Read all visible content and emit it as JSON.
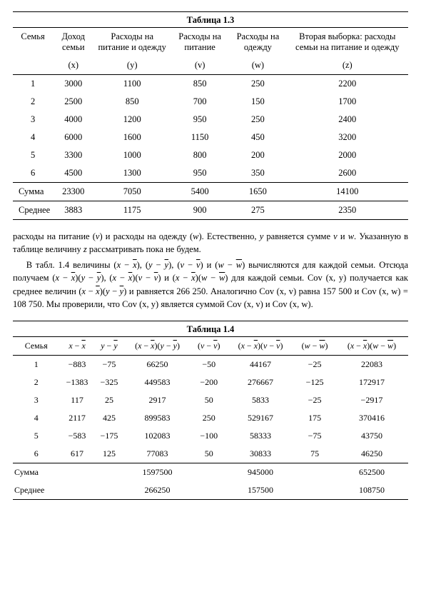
{
  "table13": {
    "title": "Таблица 1.3",
    "headers": [
      "Семья",
      "Доход семьи",
      "Расходы на питание и одежду",
      "Расходы на питание",
      "Расходы на одежду",
      "Вторая выборка: расходы семьи на питание и одежду"
    ],
    "subheaders": [
      "",
      "(x)",
      "(y)",
      "(v)",
      "(w)",
      "(z)"
    ],
    "rows": [
      [
        "1",
        "3000",
        "1100",
        "850",
        "250",
        "2200"
      ],
      [
        "2",
        "2500",
        "850",
        "700",
        "150",
        "1700"
      ],
      [
        "3",
        "4000",
        "1200",
        "950",
        "250",
        "2400"
      ],
      [
        "4",
        "6000",
        "1600",
        "1150",
        "450",
        "3200"
      ],
      [
        "5",
        "3300",
        "1000",
        "800",
        "200",
        "2000"
      ],
      [
        "6",
        "4500",
        "1300",
        "950",
        "350",
        "2600"
      ]
    ],
    "sum_label": "Сумма",
    "sum": [
      "23300",
      "7050",
      "5400",
      "1650",
      "14100"
    ],
    "mean_label": "Среднее",
    "mean": [
      "3883",
      "1175",
      "900",
      "275",
      "2350"
    ]
  },
  "body": {
    "p1a": "расходы на питание (",
    "p1b": ") и расходы на одежду (",
    "p1c": "). Естественно, ",
    "p1d": " равняется сумме ",
    "p1e": " и ",
    "p1f": ". Указанную в таблице величину ",
    "p1g": " рассматривать пока не будем.",
    "p2a": "В табл. 1.4 величины ",
    "p2b": " вычисляются для каждой семьи. Отсюда получаем ",
    "p2c": " для каждой семьи. ",
    "p2d": " получается как среднее величин ",
    "p2e": " и равняется 266 250. Аналогично ",
    "p2f": " равна 157 500 и ",
    "p2g": " = 108 750. Мы проверили, что ",
    "p2h": " является суммой ",
    "p2i": " и ",
    "p2j": ".",
    "sym_v": "v",
    "sym_w": "w",
    "sym_y": "y",
    "sym_z": "z",
    "cov_xy": "Cov (x, y)",
    "cov_xv": "Cov (x, v)",
    "cov_xw": "Cov (x, w)"
  },
  "table14": {
    "title": "Таблица 1.4",
    "row_label": "Семья",
    "sum_label": "Сумма",
    "mean_label": "Среднее",
    "rows": [
      [
        "1",
        "−883",
        "−75",
        "66250",
        "−50",
        "44167",
        "−25",
        "22083"
      ],
      [
        "2",
        "−1383",
        "−325",
        "449583",
        "−200",
        "276667",
        "−125",
        "172917"
      ],
      [
        "3",
        "117",
        "25",
        "2917",
        "50",
        "5833",
        "−25",
        "−2917"
      ],
      [
        "4",
        "2117",
        "425",
        "899583",
        "250",
        "529167",
        "175",
        "370416"
      ],
      [
        "5",
        "−583",
        "−175",
        "102083",
        "−100",
        "58333",
        "−75",
        "43750"
      ],
      [
        "6",
        "617",
        "125",
        "77083",
        "50",
        "30833",
        "75",
        "46250"
      ]
    ],
    "sum": [
      "",
      "",
      "1597500",
      "",
      "945000",
      "",
      "652500"
    ],
    "mean": [
      "",
      "",
      "266250",
      "",
      "157500",
      "",
      "108750"
    ]
  },
  "style": {
    "font_family": "Times New Roman",
    "font_size_pt": 10,
    "text_color": "#000000",
    "background": "#ffffff",
    "rule_color": "#000000"
  }
}
